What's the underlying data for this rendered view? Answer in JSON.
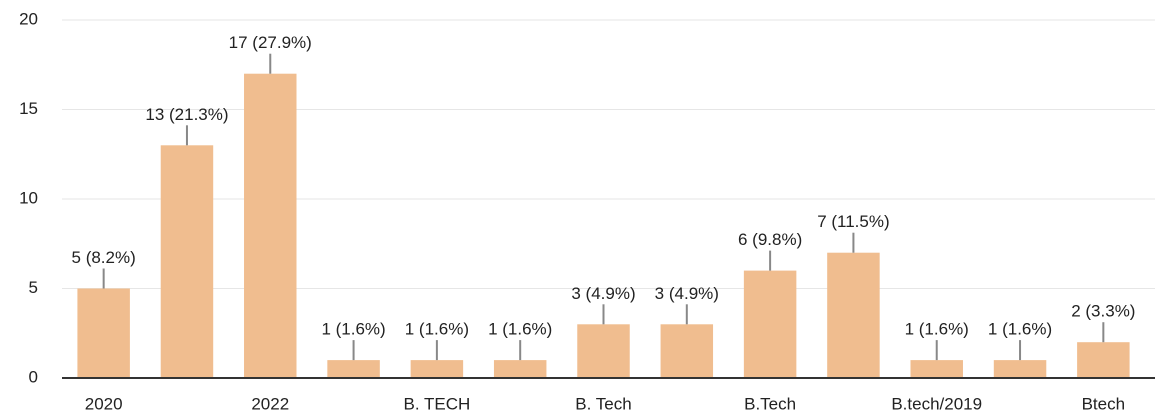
{
  "chart_data": {
    "type": "bar",
    "categories": [
      "2020",
      null,
      "2022",
      null,
      "B. TECH",
      null,
      "B. Tech",
      null,
      "B.Tech",
      null,
      "B.tech/2019",
      null,
      "Btech"
    ],
    "values": [
      5,
      13,
      17,
      1,
      1,
      1,
      3,
      3,
      6,
      7,
      1,
      1,
      2
    ],
    "value_labels": [
      "5 (8.2%)",
      "13 (21.3%)",
      "17 (27.9%)",
      "1 (1.6%)",
      "1 (1.6%)",
      "1 (1.6%)",
      "3 (4.9%)",
      "3 (4.9%)",
      "6 (9.8%)",
      "7 (11.5%)",
      "1 (1.6%)",
      "1 (1.6%)",
      "2 (3.3%)"
    ],
    "color": "#f0bd8f",
    "ylim": [
      0,
      20
    ],
    "yticks": [
      0,
      5,
      10,
      15,
      20
    ],
    "grid": true
  }
}
